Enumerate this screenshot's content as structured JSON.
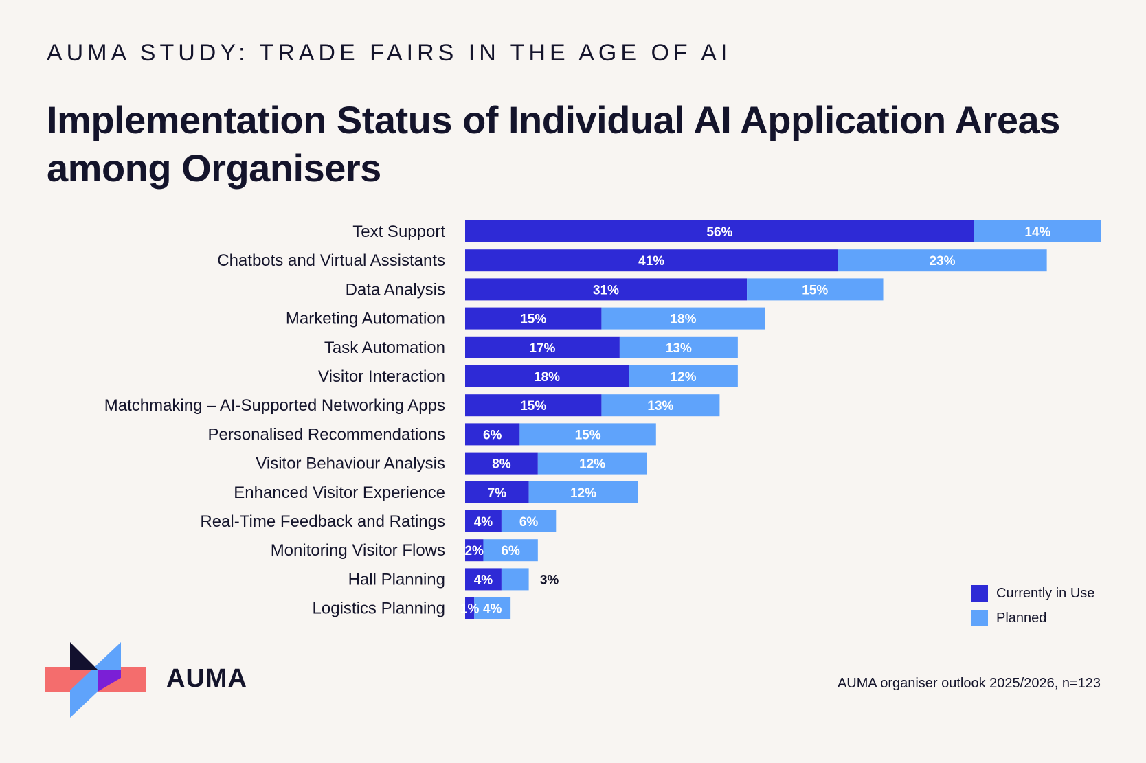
{
  "header": {
    "kicker": "AUMA STUDY: TRADE FAIRS IN THE AGE OF AI",
    "title": "Implementation Status of Individual AI Application Areas among Organisers"
  },
  "legend": {
    "current_label": "Currently in Use",
    "planned_label": "Planned"
  },
  "colors": {
    "current": "#2e2ad6",
    "planned": "#5fa3fb",
    "text": "#14142b",
    "background": "#f8f5f2",
    "logo_red": "#f46d6d",
    "logo_blue": "#5fa3fb",
    "logo_dark": "#12102e",
    "logo_purple": "#7b1fd6"
  },
  "footer": {
    "brand": "AUMA",
    "source": "AUMA organiser outlook 2025/2026, n=123"
  },
  "chart_data": {
    "type": "bar",
    "orientation": "horizontal",
    "stacked": true,
    "title": "Implementation Status of Individual AI Application Areas among Organisers",
    "xlabel": "",
    "ylabel": "",
    "xlim": [
      0,
      70
    ],
    "grid": false,
    "legend_position": "bottom-right",
    "categories": [
      "Text Support",
      "Chatbots and Virtual Assistants",
      "Data Analysis",
      "Marketing Automation",
      "Task Automation",
      "Visitor Interaction",
      "Matchmaking – AI-Supported Networking Apps",
      "Personalised Recommendations",
      "Visitor Behaviour Analysis",
      "Enhanced Visitor Experience",
      "Real-Time Feedback and Ratings",
      "Monitoring Visitor Flows",
      "Hall Planning",
      "Logistics Planning"
    ],
    "series": [
      {
        "name": "Currently in Use",
        "values": [
          56,
          41,
          31,
          15,
          17,
          18,
          15,
          6,
          8,
          7,
          4,
          2,
          4,
          1
        ]
      },
      {
        "name": "Planned",
        "values": [
          14,
          23,
          15,
          18,
          13,
          12,
          13,
          15,
          12,
          12,
          6,
          6,
          3,
          4
        ]
      }
    ]
  }
}
